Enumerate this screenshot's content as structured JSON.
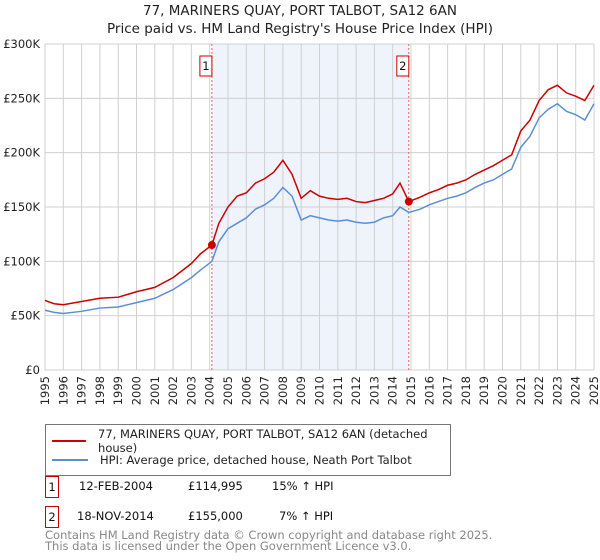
{
  "title": "77, MARINERS QUAY, PORT TALBOT, SA12 6AN",
  "subtitle": "Price paid vs. HM Land Registry's House Price Index (HPI)",
  "chart_data": {
    "type": "line",
    "title": "77, MARINERS QUAY, PORT TALBOT, SA12 6AN",
    "subtitle": "Price paid vs. HM Land Registry's House Price Index (HPI)",
    "xlim": [
      1995,
      2025
    ],
    "ylim": [
      0,
      300000
    ],
    "yticks": [
      {
        "v": 0,
        "label": "£0"
      },
      {
        "v": 50000,
        "label": "£50K"
      },
      {
        "v": 100000,
        "label": "£100K"
      },
      {
        "v": 150000,
        "label": "£150K"
      },
      {
        "v": 200000,
        "label": "£200K"
      },
      {
        "v": 250000,
        "label": "£250K"
      },
      {
        "v": 300000,
        "label": "£300K"
      }
    ],
    "xticks": [
      "1995",
      "1996",
      "1997",
      "1998",
      "1999",
      "2000",
      "2001",
      "2002",
      "2003",
      "2004",
      "2005",
      "2006",
      "2007",
      "2008",
      "2009",
      "2010",
      "2011",
      "2012",
      "2013",
      "2014",
      "2015",
      "2016",
      "2017",
      "2018",
      "2019",
      "2020",
      "2021",
      "2022",
      "2023",
      "2024",
      "2025"
    ],
    "grid": true,
    "legend_placement": "below",
    "x": [
      1995,
      1995.5,
      1996,
      1997,
      1998,
      1999,
      2000,
      2001,
      2002,
      2003,
      2003.5,
      2004.12,
      2004.5,
      2005,
      2005.5,
      2006,
      2006.5,
      2007,
      2007.5,
      2008,
      2008.5,
      2009,
      2009.5,
      2010,
      2010.5,
      2011,
      2011.5,
      2012,
      2012.5,
      2013,
      2013.5,
      2014,
      2014.4,
      2014.88,
      2015.5,
      2016,
      2016.5,
      2017,
      2017.5,
      2018,
      2018.5,
      2019,
      2019.5,
      2020,
      2020.5,
      2021,
      2021.5,
      2022,
      2022.5,
      2023,
      2023.5,
      2024,
      2024.5,
      2025
    ],
    "series": [
      {
        "name": "77, MARINERS QUAY, PORT TALBOT, SA12 6AN (detached house)",
        "color": "#cc0000",
        "values": [
          64000,
          61000,
          60000,
          63000,
          66000,
          67000,
          72000,
          76000,
          85000,
          98000,
          107000,
          114995,
          135000,
          150000,
          160000,
          163000,
          172000,
          176000,
          182000,
          193000,
          180000,
          158000,
          165000,
          160000,
          158000,
          157000,
          158000,
          155000,
          154000,
          156000,
          158000,
          162000,
          172000,
          155000,
          159000,
          163000,
          166000,
          170000,
          172000,
          175000,
          180000,
          184000,
          188000,
          193000,
          198000,
          220000,
          230000,
          248000,
          258000,
          262000,
          255000,
          252000,
          248000,
          262000
        ]
      },
      {
        "name": "HPI: Average price, detached house, Neath Port Talbot",
        "color": "#5b8fd4",
        "values": [
          55000,
          53000,
          52000,
          54000,
          57000,
          58000,
          62000,
          66000,
          74000,
          85000,
          92000,
          100000,
          118000,
          130000,
          135000,
          140000,
          148000,
          152000,
          158000,
          168000,
          160000,
          138000,
          142000,
          140000,
          138000,
          137000,
          138000,
          136000,
          135000,
          136000,
          140000,
          142000,
          150000,
          145000,
          148000,
          152000,
          155000,
          158000,
          160000,
          163000,
          168000,
          172000,
          175000,
          180000,
          185000,
          205000,
          215000,
          232000,
          240000,
          245000,
          238000,
          235000,
          230000,
          245000
        ]
      }
    ],
    "shaded_range": [
      2004.12,
      2014.88
    ],
    "annotations": [
      {
        "label": "1",
        "x": 2004.12,
        "y": 114995
      },
      {
        "label": "2",
        "x": 2014.88,
        "y": 155000
      }
    ]
  },
  "legend": [
    {
      "label": "77, MARINERS QUAY, PORT TALBOT, SA12 6AN (detached house)",
      "color": "#cc0000"
    },
    {
      "label": "HPI: Average price, detached house, Neath Port Talbot",
      "color": "#5b8fd4"
    }
  ],
  "transactions": [
    {
      "num": "1",
      "date": "12-FEB-2004",
      "price": "£114,995",
      "hpi": "15% ↑ HPI"
    },
    {
      "num": "2",
      "date": "18-NOV-2014",
      "price": "£155,000",
      "hpi": "7% ↑ HPI"
    }
  ],
  "footer": [
    "Contains HM Land Registry data © Crown copyright and database right 2025.",
    "This data is licensed under the Open Government Licence v3.0."
  ]
}
